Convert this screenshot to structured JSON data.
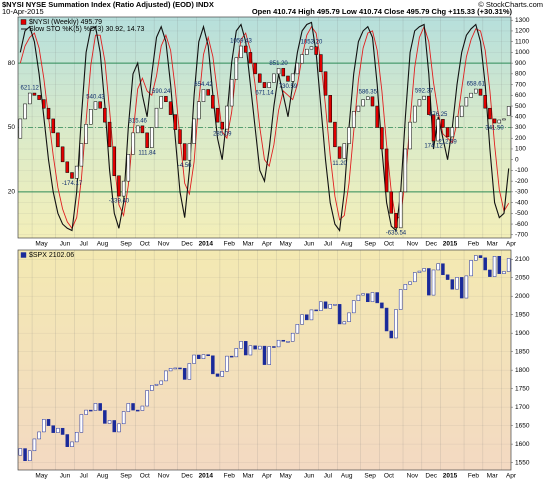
{
  "chart_data": [
    {
      "type": "candlestick",
      "title": "$NYSI NYSE Summation Index (Ratio Adjusted) (EOD) INDX",
      "subtitle": "10-Apr-2015",
      "quote": "Open 410.74  High 495.79  Low 410.74  Close 495.79  Chg +115.33 (+30.31%)",
      "credit": "© StockCharts.com",
      "categories": [
        null,
        null,
        null,
        "May",
        null,
        null,
        null,
        null,
        "Jun",
        null,
        null,
        null,
        "Jul",
        null,
        null,
        null,
        "Aug",
        null,
        null,
        null,
        null,
        "Sep",
        null,
        null,
        null,
        "Oct",
        null,
        null,
        null,
        "Nov",
        null,
        null,
        null,
        null,
        "Dec",
        null,
        null,
        null,
        "2014",
        null,
        null,
        null,
        null,
        "Feb",
        null,
        null,
        null,
        "Mar",
        null,
        null,
        null,
        "Apr",
        null,
        null,
        null,
        "May",
        null,
        null,
        null,
        null,
        "Jun",
        null,
        null,
        null,
        "Jul",
        null,
        null,
        null,
        "Aug",
        null,
        null,
        null,
        null,
        "Sep",
        null,
        null,
        null,
        "Oct",
        null,
        null,
        null,
        null,
        "Nov",
        null,
        null,
        null,
        "Dec",
        null,
        null,
        null,
        "2015",
        null,
        null,
        null,
        null,
        "Feb",
        null,
        null,
        null,
        "Mar",
        null,
        null,
        null,
        "Apr",
        null
      ],
      "series": [
        {
          "name": "$NYSI (Weekly) 495.79",
          "up_color": "#ffffff",
          "down_color": "#e00000",
          "edge_color": "#000000",
          "open": [
            200,
            380,
            520,
            621.12,
            600,
            560,
            480,
            380,
            250,
            120,
            -20,
            -120,
            -174.17,
            -60,
            150,
            330,
            470,
            540.43,
            480,
            350,
            120,
            -150,
            -339.4,
            -200,
            50,
            250,
            315.46,
            250,
            111.84,
            300,
            480,
            590.24,
            540,
            420,
            280,
            150,
            -4.56,
            150,
            380,
            540,
            654.42,
            600,
            480,
            350,
            285.09,
            500,
            750,
            950,
            1059.43,
            1000,
            900,
            800,
            720,
            671.14,
            720,
            800,
            851.2,
            780,
            730.59,
            800,
            900,
            980,
            1030,
            1053.2,
            980,
            820,
            600,
            350,
            120,
            11.2,
            150,
            300,
            450,
            500,
            560,
            586.35,
            500,
            300,
            100,
            -300,
            -500,
            -635.54,
            -300,
            100,
            350,
            500,
            560,
            592.37,
            420,
            174.12,
            376.25,
            300,
            212.59,
            300,
            400,
            500,
            580,
            620,
            658.61,
            600,
            480,
            380,
            341.5,
            370,
            410.74
          ],
          "close": [
            380,
            520,
            621.12,
            600,
            560,
            480,
            380,
            250,
            120,
            -20,
            -120,
            -174.17,
            -60,
            150,
            330,
            470,
            540.43,
            480,
            350,
            120,
            -150,
            -339.4,
            -200,
            50,
            250,
            315.46,
            250,
            111.84,
            300,
            480,
            590.24,
            540,
            420,
            280,
            150,
            -4.56,
            150,
            380,
            540,
            654.42,
            600,
            480,
            350,
            285.09,
            500,
            750,
            950,
            1059.43,
            1000,
            900,
            800,
            720,
            671.14,
            720,
            800,
            851.2,
            780,
            730.59,
            800,
            900,
            980,
            1030,
            1053.2,
            980,
            820,
            600,
            350,
            120,
            11.2,
            150,
            300,
            450,
            500,
            560,
            586.35,
            500,
            300,
            100,
            -300,
            -500,
            -635.54,
            -300,
            100,
            350,
            500,
            560,
            592.37,
            420,
            174.12,
            376.25,
            300,
            212.59,
            300,
            400,
            500,
            580,
            620,
            658.61,
            600,
            480,
            380,
            341.5,
            370,
            380.46,
            495.79
          ],
          "value_labels": [
            null,
            null,
            "621.12",
            null,
            null,
            null,
            null,
            null,
            null,
            null,
            null,
            "-174.17",
            null,
            null,
            null,
            null,
            "540.43",
            null,
            null,
            null,
            null,
            "-339.40",
            null,
            null,
            null,
            "315.46",
            null,
            "111.84",
            null,
            null,
            "590.24",
            null,
            null,
            null,
            null,
            "-4.56",
            null,
            null,
            null,
            "654.42",
            null,
            null,
            null,
            "285.09",
            null,
            null,
            null,
            "1059.43",
            null,
            null,
            null,
            null,
            "671.14",
            null,
            null,
            "851.20",
            null,
            "730.59",
            null,
            null,
            null,
            null,
            "1053.20",
            null,
            null,
            null,
            null,
            null,
            "11.20",
            null,
            null,
            null,
            null,
            null,
            "586.35",
            null,
            null,
            null,
            null,
            null,
            "-635.54",
            null,
            null,
            null,
            null,
            null,
            "592.37",
            null,
            "174.12",
            "376.25",
            null,
            "212.59",
            null,
            null,
            null,
            null,
            null,
            "658.61",
            null,
            null,
            null,
            "341.50",
            null,
            null,
            null
          ]
        }
      ],
      "stochastic": {
        "name": "Slow STO %K(5) %D(3) 30.92, 14.73",
        "k": {
          "color": "#111111",
          "values": [
            85,
            95,
            97,
            90,
            75,
            55,
            35,
            20,
            10,
            5,
            3,
            2,
            20,
            55,
            85,
            96,
            97,
            85,
            60,
            30,
            10,
            3,
            15,
            50,
            75,
            80,
            65,
            55,
            75,
            92,
            97,
            90,
            70,
            45,
            20,
            8,
            30,
            65,
            90,
            97,
            88,
            65,
            45,
            35,
            55,
            80,
            95,
            98,
            90,
            70,
            50,
            30,
            25,
            40,
            60,
            75,
            65,
            55,
            70,
            85,
            95,
            98,
            99,
            85,
            60,
            35,
            15,
            5,
            2,
            20,
            50,
            75,
            90,
            95,
            97,
            92,
            70,
            40,
            15,
            4,
            2,
            20,
            55,
            85,
            95,
            97,
            98,
            75,
            40,
            55,
            45,
            35,
            50,
            70,
            85,
            93,
            96,
            98,
            90,
            70,
            40,
            15,
            8,
            10,
            30.92
          ]
        },
        "d": {
          "color": "#e02020",
          "values": [
            80,
            88,
            92,
            94,
            87,
            73,
            55,
            37,
            22,
            12,
            6,
            3,
            8,
            26,
            53,
            79,
            93,
            93,
            81,
            58,
            33,
            14,
            9,
            23,
            47,
            68,
            73,
            67,
            65,
            74,
            88,
            93,
            86,
            68,
            45,
            24,
            19,
            34,
            62,
            84,
            92,
            83,
            66,
            48,
            45,
            57,
            77,
            91,
            94,
            86,
            70,
            50,
            35,
            32,
            42,
            58,
            67,
            65,
            63,
            70,
            83,
            93,
            97,
            94,
            81,
            60,
            37,
            18,
            7,
            9,
            24,
            48,
            72,
            87,
            94,
            95,
            86,
            67,
            42,
            20,
            7,
            9,
            26,
            53,
            78,
            92,
            97,
            90,
            71,
            57,
            47,
            45,
            43,
            52,
            68,
            83,
            91,
            96,
            95,
            86,
            67,
            42,
            21,
            11,
            14.73
          ]
        }
      },
      "ylim": [
        -730,
        1330
      ],
      "yticks": [
        -700,
        -600,
        -500,
        -400,
        -300,
        -200,
        -100,
        0,
        100,
        200,
        300,
        400,
        500,
        600,
        700,
        800,
        900,
        1000,
        1100,
        1200,
        1300
      ],
      "y2lim": [
        -1.5,
        101.5
      ],
      "y2ticks": [
        20,
        50,
        80
      ],
      "y2_line_color": "#2e8b57",
      "grid": true,
      "legend": "top-left"
    },
    {
      "type": "candlestick",
      "categories": [
        null,
        null,
        null,
        "May",
        null,
        null,
        null,
        null,
        "Jun",
        null,
        null,
        null,
        "Jul",
        null,
        null,
        null,
        "Aug",
        null,
        null,
        null,
        null,
        "Sep",
        null,
        null,
        null,
        "Oct",
        null,
        null,
        null,
        "Nov",
        null,
        null,
        null,
        null,
        "Dec",
        null,
        null,
        null,
        "2014",
        null,
        null,
        null,
        null,
        "Feb",
        null,
        null,
        null,
        "Mar",
        null,
        null,
        null,
        "Apr",
        null,
        null,
        null,
        "May",
        null,
        null,
        null,
        null,
        "Jun",
        null,
        null,
        null,
        "Jul",
        null,
        null,
        null,
        "Aug",
        null,
        null,
        null,
        null,
        "Sep",
        null,
        null,
        null,
        "Oct",
        null,
        null,
        null,
        null,
        "Nov",
        null,
        null,
        null,
        "Dec",
        null,
        null,
        null,
        "2015",
        null,
        null,
        null,
        null,
        "Feb",
        null,
        null,
        null,
        "Mar",
        null,
        null,
        null,
        "Apr",
        null
      ],
      "series": [
        {
          "name": "$SPX 2102.06",
          "up_color": "#ffffff",
          "down_color": "#1a2a9a",
          "edge_color": "#1a2a9a",
          "open": [
            1570,
            1588,
            1555,
            1582,
            1614,
            1633,
            1667,
            1650,
            1631,
            1643,
            1626,
            1593,
            1606,
            1632,
            1680,
            1692,
            1691,
            1710,
            1691,
            1656,
            1664,
            1633,
            1655,
            1688,
            1710,
            1692,
            1691,
            1703,
            1745,
            1759,
            1762,
            1771,
            1798,
            1805,
            1806,
            1805,
            1775,
            1818,
            1841,
            1831,
            1842,
            1839,
            1790,
            1783,
            1797,
            1838,
            1836,
            1859,
            1878,
            1841,
            1866,
            1857,
            1865,
            1815,
            1864,
            1863,
            1881,
            1878,
            1878,
            1900,
            1924,
            1950,
            1936,
            1963,
            1961,
            1985,
            1967,
            1978,
            1978,
            1925,
            1931,
            1955,
            1988,
            2003,
            2007,
            1985,
            2010,
            1982,
            1968,
            1906,
            1887,
            1964,
            2018,
            2032,
            2039,
            2064,
            2068,
            2075,
            2003,
            2071,
            2088,
            2058,
            2045,
            2019,
            2051,
            1995,
            2055,
            2097,
            2110,
            2104,
            2071,
            2053,
            2108,
            2061,
            2067
          ],
          "close": [
            1588,
            1555,
            1582,
            1614,
            1633,
            1667,
            1650,
            1631,
            1643,
            1626,
            1593,
            1606,
            1632,
            1680,
            1692,
            1691,
            1710,
            1691,
            1656,
            1664,
            1633,
            1655,
            1688,
            1710,
            1692,
            1691,
            1703,
            1745,
            1759,
            1762,
            1771,
            1798,
            1805,
            1806,
            1805,
            1775,
            1818,
            1841,
            1831,
            1842,
            1839,
            1790,
            1783,
            1797,
            1838,
            1836,
            1859,
            1878,
            1841,
            1866,
            1857,
            1865,
            1815,
            1864,
            1863,
            1881,
            1878,
            1878,
            1900,
            1924,
            1950,
            1936,
            1963,
            1961,
            1985,
            1967,
            1978,
            1978,
            1925,
            1931,
            1955,
            1988,
            2003,
            2007,
            1985,
            2010,
            1982,
            1968,
            1906,
            1887,
            1964,
            2018,
            2032,
            2039,
            2064,
            2068,
            2075,
            2003,
            2071,
            2088,
            2058,
            2045,
            2019,
            2051,
            1995,
            2055,
            2097,
            2110,
            2104,
            2071,
            2053,
            2108,
            2061,
            2067,
            2102.06
          ]
        }
      ],
      "ylim": [
        1530,
        2125
      ],
      "yticks": [
        1550,
        1600,
        1650,
        1700,
        1750,
        1800,
        1850,
        1900,
        1950,
        2000,
        2050,
        2100
      ],
      "grid": true,
      "legend": "top-left"
    }
  ]
}
